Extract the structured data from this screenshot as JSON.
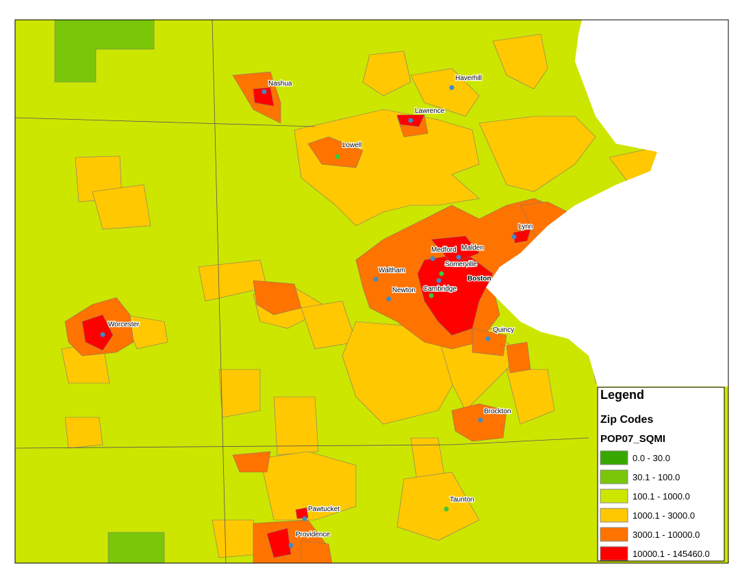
{
  "legend": {
    "title": "Legend",
    "layer": "Zip Codes",
    "field": "POP07_SQMI",
    "classes": [
      {
        "label": "0.0 - 30.0",
        "color": "#38a800"
      },
      {
        "label": "30.1 - 100.0",
        "color": "#7ac70a"
      },
      {
        "label": "100.1 - 1000.0",
        "color": "#cde600"
      },
      {
        "label": "1000.1 - 3000.0",
        "color": "#ffc800"
      },
      {
        "label": "3000.1 - 10000.0",
        "color": "#ff7300"
      },
      {
        "label": "10000.1 - 145460.0",
        "color": "#ff0000"
      }
    ]
  },
  "cities": [
    "Nashua",
    "Haverhill",
    "Lawrence",
    "Lowell",
    "Lynn",
    "Medford",
    "Malden",
    "Somerville",
    "Waltham",
    "Boston",
    "Newton",
    "Cambridge",
    "Worcester",
    "Quincy",
    "Brockton",
    "Taunton",
    "Pawtucket",
    "Providence"
  ]
}
